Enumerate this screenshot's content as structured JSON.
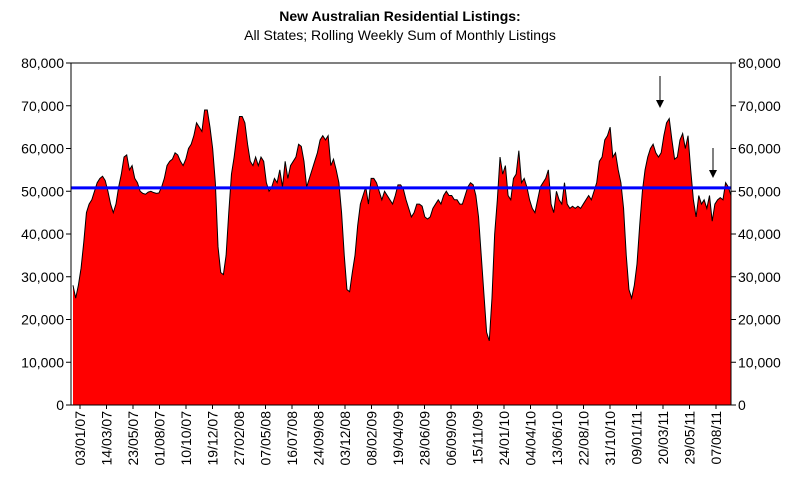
{
  "chart_data": {
    "type": "area",
    "title": "New Australian Residential Listings:",
    "subtitle": "All States; Rolling Weekly Sum of Monthly Listings",
    "xlabel": "",
    "ylabel": "",
    "ylim": [
      0,
      80000
    ],
    "yticks": [
      "0",
      "10,000",
      "20,000",
      "30,000",
      "40,000",
      "50,000",
      "60,000",
      "70,000",
      "80,000"
    ],
    "yticks_right": [
      "0",
      "10,000",
      "20,000",
      "30,000",
      "40,000",
      "50,000",
      "60,000",
      "70,000",
      "80,000"
    ],
    "xticks": [
      "03/01/07",
      "14/03/07",
      "23/05/07",
      "01/08/07",
      "10/10/07",
      "19/12/07",
      "27/02/08",
      "07/05/08",
      "16/07/08",
      "24/09/08",
      "03/12/08",
      "08/02/09",
      "19/04/09",
      "28/06/09",
      "06/09/09",
      "15/11/09",
      "24/01/10",
      "04/04/10",
      "13/06/10",
      "22/08/10",
      "31/10/10",
      "09/01/11",
      "20/03/11",
      "29/05/11",
      "07/08/11"
    ],
    "grid": false,
    "legend": "none",
    "fill_color": "#ff0000",
    "line_color": "#000000",
    "average_value": 50800,
    "average_color": "#0000ff",
    "arrows_at": [
      "20/03/11",
      "07/08/11"
    ],
    "series": [
      {
        "values": [
          28000,
          25000,
          28000,
          32000,
          38000,
          45000,
          47000,
          48000,
          50000,
          52000,
          53000,
          53500,
          52500,
          50000,
          47000,
          45000,
          47000,
          51000,
          54000,
          58000,
          58500,
          55000,
          56000,
          53000,
          52000,
          50000,
          49500,
          49300,
          49800,
          50000,
          49700,
          49500,
          49600,
          51000,
          53000,
          56000,
          57000,
          57500,
          59000,
          58500,
          57000,
          56000,
          57500,
          60000,
          61000,
          63000,
          66000,
          65000,
          64000,
          69000,
          69000,
          65000,
          60000,
          52000,
          37000,
          31000,
          30500,
          35000,
          45000,
          54000,
          58000,
          63000,
          67500,
          67500,
          66000,
          61000,
          57000,
          56000,
          58000,
          56000,
          58000,
          57000,
          52000,
          50000,
          51000,
          53000,
          52000,
          55000,
          51000,
          57000,
          53000,
          56000,
          57000,
          58000,
          61000,
          60500,
          57000,
          51000,
          53000,
          55000,
          57000,
          59000,
          62000,
          63000,
          62000,
          63000,
          56000,
          57500,
          55000,
          52000,
          45000,
          35000,
          27000,
          26500,
          31000,
          35000,
          42000,
          47000,
          49000,
          51000,
          47000,
          53000,
          53000,
          52000,
          50000,
          48000,
          50000,
          49000,
          48000,
          47000,
          49000,
          51500,
          51500,
          50500,
          48000,
          46000,
          44000,
          45000,
          47000,
          47000,
          46500,
          44000,
          43500,
          44000,
          46000,
          47000,
          48000,
          47000,
          49000,
          50000,
          49000,
          49000,
          48000,
          48000,
          47000,
          47000,
          49000,
          51000,
          52000,
          51500,
          49000,
          44000,
          35000,
          26000,
          17000,
          15000,
          25000,
          40000,
          48000,
          58000,
          54000,
          56000,
          49000,
          48000,
          53000,
          54000,
          59500,
          52000,
          53000,
          51000,
          48000,
          46000,
          45000,
          48000,
          51000,
          52000,
          53000,
          55000,
          47000,
          45000,
          50000,
          48000,
          47000,
          52000,
          47000,
          46000,
          46500,
          46000,
          46500,
          46000,
          47000,
          48000,
          49000,
          48000,
          50000,
          52000,
          57000,
          58000,
          62000,
          63000,
          65000,
          58000,
          59000,
          55000,
          52000,
          46000,
          35000,
          27000,
          25000,
          28000,
          33000,
          42000,
          50000,
          55000,
          58000,
          60000,
          61000,
          59000,
          58000,
          59000,
          63000,
          66000,
          67000,
          62000,
          57500,
          58000,
          62000,
          63500,
          60000,
          63000,
          55000,
          48000,
          44000,
          49000,
          47000,
          48000,
          46000,
          49000,
          43000,
          47000,
          48000,
          48500,
          48000,
          52000,
          51000,
          49000
        ]
      }
    ]
  }
}
